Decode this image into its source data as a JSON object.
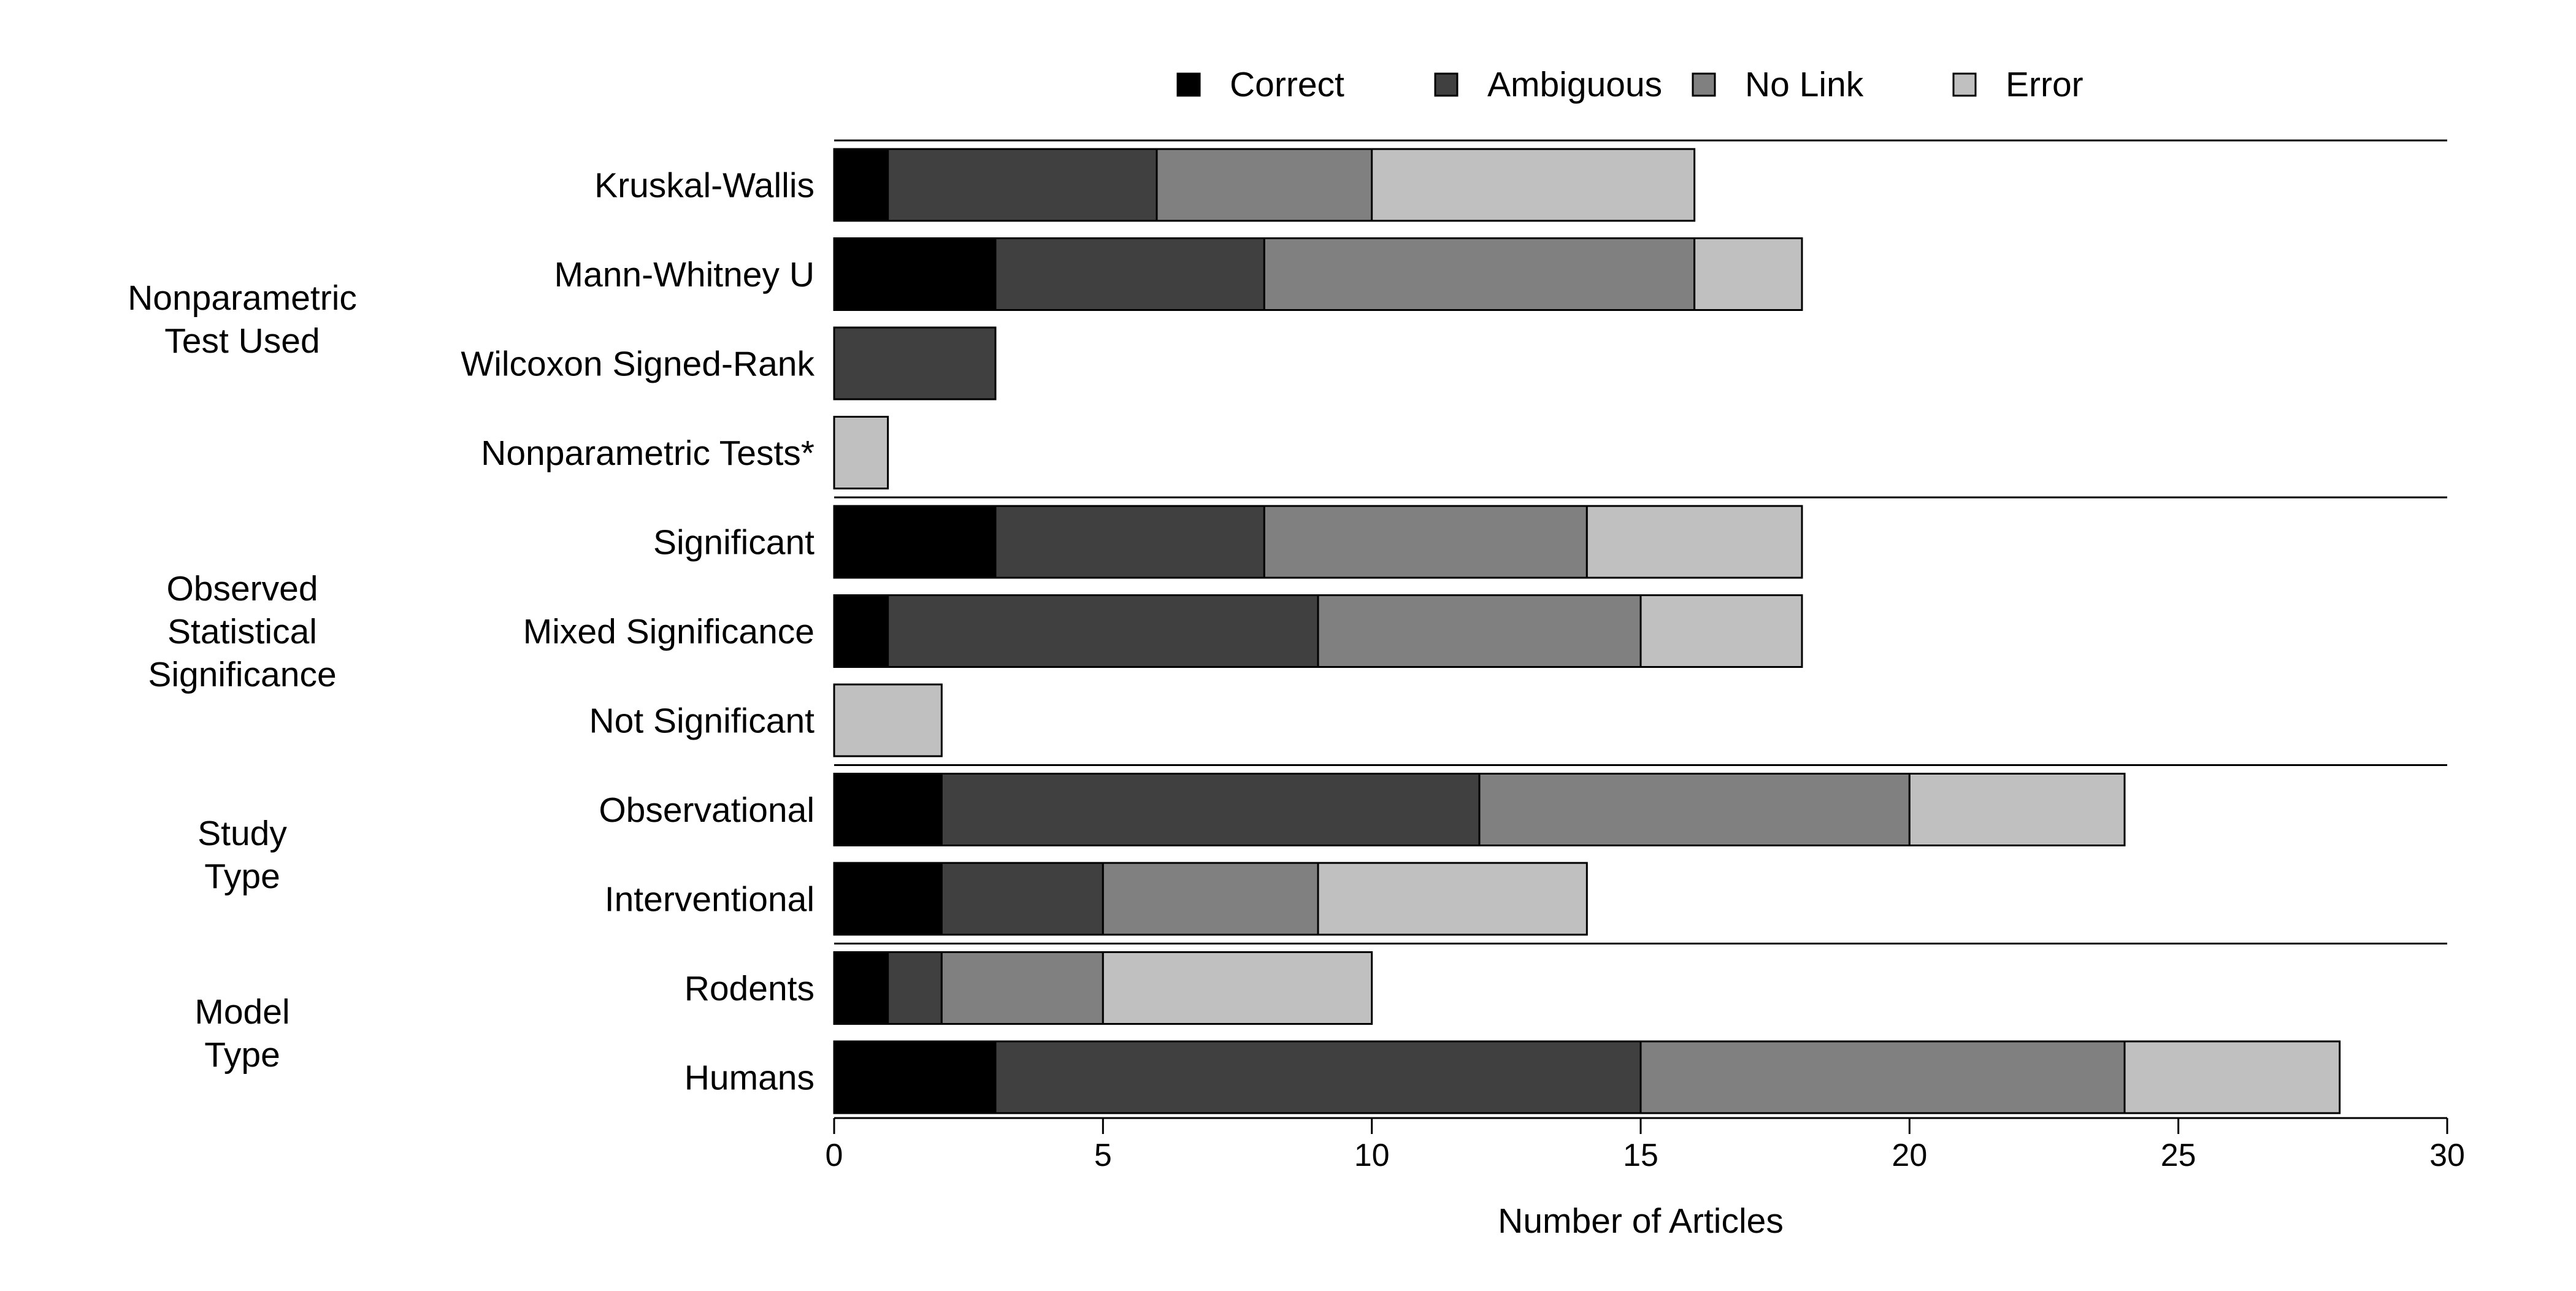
{
  "chart_data": {
    "type": "bar",
    "orientation": "horizontal",
    "stacked": true,
    "xlabel": "Number of Articles",
    "ylabel": "",
    "xlim": [
      0,
      30
    ],
    "x_ticks": [
      0,
      5,
      10,
      15,
      20,
      25,
      30
    ],
    "grid": false,
    "legend_position": "top",
    "series": [
      {
        "name": "Correct",
        "color": "#000000"
      },
      {
        "name": "Ambiguous",
        "color": "#404040"
      },
      {
        "name": "No Link",
        "color": "#808080"
      },
      {
        "name": "Error",
        "color": "#c0c0c0"
      }
    ],
    "groups": [
      {
        "label_lines": [
          "Nonparametric",
          "Test Used"
        ],
        "rows": [
          {
            "label": "Kruskal-Wallis",
            "values": [
              1,
              5,
              4,
              6
            ]
          },
          {
            "label": "Mann-Whitney U",
            "values": [
              3,
              5,
              8,
              2
            ]
          },
          {
            "label": "Wilcoxon Signed-Rank",
            "values": [
              0,
              3,
              0,
              0
            ]
          },
          {
            "label": "Nonparametric Tests*",
            "values": [
              0,
              0,
              0,
              1
            ]
          }
        ]
      },
      {
        "label_lines": [
          "Observed",
          "Statistical",
          "Significance"
        ],
        "rows": [
          {
            "label": "Significant",
            "values": [
              3,
              5,
              6,
              4
            ]
          },
          {
            "label": "Mixed Significance",
            "values": [
              1,
              8,
              6,
              3
            ]
          },
          {
            "label": "Not Significant",
            "values": [
              0,
              0,
              0,
              2
            ]
          }
        ]
      },
      {
        "label_lines": [
          "Study",
          "Type"
        ],
        "rows": [
          {
            "label": "Observational",
            "values": [
              2,
              10,
              8,
              4
            ]
          },
          {
            "label": "Interventional",
            "values": [
              2,
              3,
              4,
              5
            ]
          }
        ]
      },
      {
        "label_lines": [
          "Model",
          "Type"
        ],
        "rows": [
          {
            "label": "Rodents",
            "values": [
              1,
              1,
              3,
              5
            ]
          },
          {
            "label": "Humans",
            "values": [
              3,
              12,
              9,
              4
            ]
          }
        ]
      }
    ]
  }
}
